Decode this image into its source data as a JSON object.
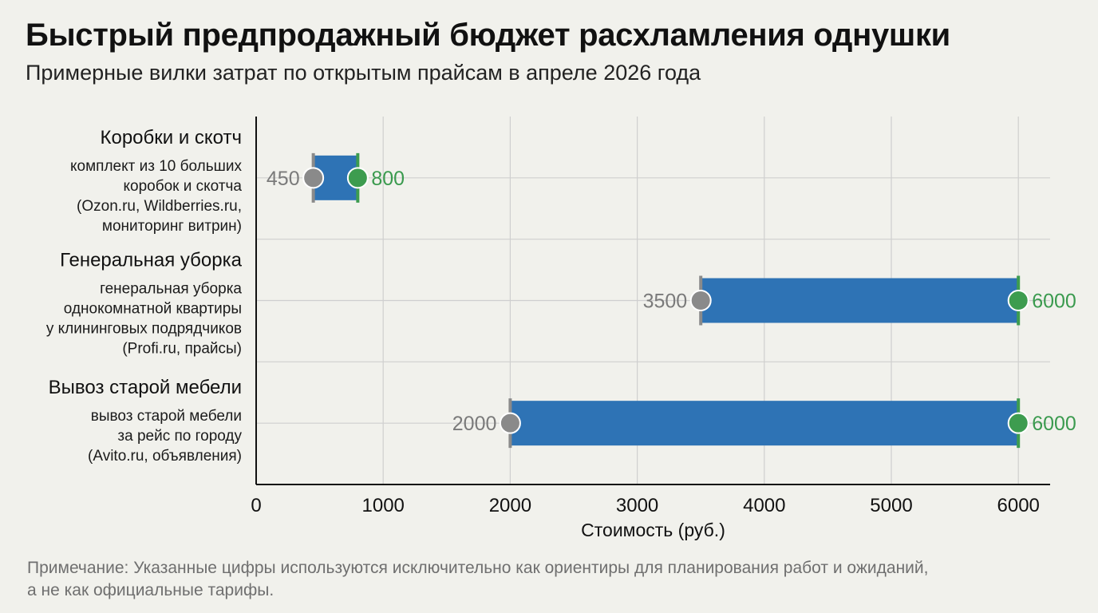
{
  "title": "Быстрый предпродажный бюджет расхламления однушки",
  "subtitle": "Примерные вилки затрат по открытым прайсам в апреле 2026 года",
  "note_lines": [
    "Примечание: Указанные цифры используются исключительно как ориентиры для планирования работ и ожиданий,",
    "а не как официальные тарифы."
  ],
  "colors": {
    "bar": "#2e73b5",
    "min_marker": "#8a8a8a",
    "max_marker": "#3d9c4f",
    "grid": "#cfcfcf",
    "background": "#f1f1ec"
  },
  "chart_data": {
    "type": "bar",
    "orientation": "horizontal-range",
    "xlabel": "Стоимость (руб.)",
    "xlim": [
      0,
      6250
    ],
    "xticks": [
      0,
      1000,
      2000,
      3000,
      4000,
      5000,
      6000
    ],
    "grid": true,
    "categories": [
      {
        "title": "Коробки и скотч",
        "desc": [
          "комплект из 10 больших",
          "коробок и скотча",
          "(Ozon.ru, Wildberries.ru,",
          "мониторинг витрин)"
        ],
        "min": 450,
        "max": 800
      },
      {
        "title": "Генеральная уборка",
        "desc": [
          "генеральная уборка",
          "однокомнатной квартиры",
          "у клининговых подрядчиков",
          "(Profi.ru, прайсы)"
        ],
        "min": 3500,
        "max": 6000
      },
      {
        "title": "Вывоз старой мебели",
        "desc": [
          "вывоз старой мебели",
          "за рейс по городу",
          "(Avito.ru, объявления)"
        ],
        "min": 2000,
        "max": 6000
      }
    ]
  }
}
